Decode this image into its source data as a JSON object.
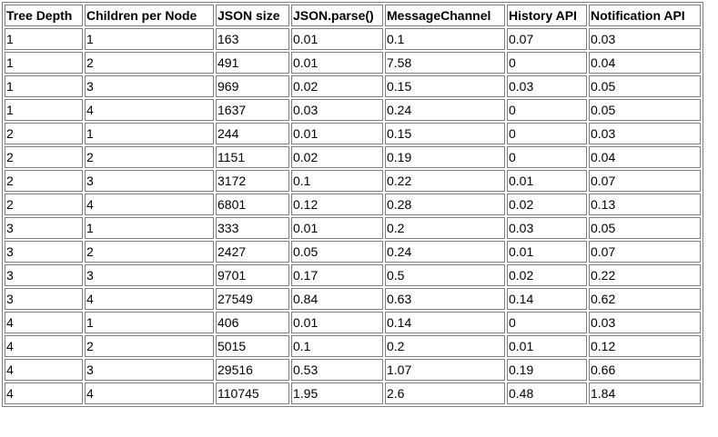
{
  "table": {
    "headers": [
      "Tree Depth",
      "Children per Node",
      "JSON size",
      "JSON.parse()",
      "MessageChannel",
      "History API",
      "Notification API"
    ],
    "rows": [
      [
        "1",
        "1",
        "163",
        "0.01",
        "0.1",
        "0.07",
        "0.03"
      ],
      [
        "1",
        "2",
        "491",
        "0.01",
        "7.58",
        "0",
        "0.04"
      ],
      [
        "1",
        "3",
        "969",
        "0.02",
        "0.15",
        "0.03",
        "0.05"
      ],
      [
        "1",
        "4",
        "1637",
        "0.03",
        "0.24",
        "0",
        "0.05"
      ],
      [
        "2",
        "1",
        "244",
        "0.01",
        "0.15",
        "0",
        "0.03"
      ],
      [
        "2",
        "2",
        "1151",
        "0.02",
        "0.19",
        "0",
        "0.04"
      ],
      [
        "2",
        "3",
        "3172",
        "0.1",
        "0.22",
        "0.01",
        "0.07"
      ],
      [
        "2",
        "4",
        "6801",
        "0.12",
        "0.28",
        "0.02",
        "0.13"
      ],
      [
        "3",
        "1",
        "333",
        "0.01",
        "0.2",
        "0.03",
        "0.05"
      ],
      [
        "3",
        "2",
        "2427",
        "0.05",
        "0.24",
        "0.01",
        "0.07"
      ],
      [
        "3",
        "3",
        "9701",
        "0.17",
        "0.5",
        "0.02",
        "0.22"
      ],
      [
        "3",
        "4",
        "27549",
        "0.84",
        "0.63",
        "0.14",
        "0.62"
      ],
      [
        "4",
        "1",
        "406",
        "0.01",
        "0.14",
        "0",
        "0.03"
      ],
      [
        "4",
        "2",
        "5015",
        "0.1",
        "0.2",
        "0.01",
        "0.12"
      ],
      [
        "4",
        "3",
        "29516",
        "0.53",
        "1.07",
        "0.19",
        "0.66"
      ],
      [
        "4",
        "4",
        "110745",
        "1.95",
        "2.6",
        "0.48",
        "1.84"
      ]
    ]
  }
}
